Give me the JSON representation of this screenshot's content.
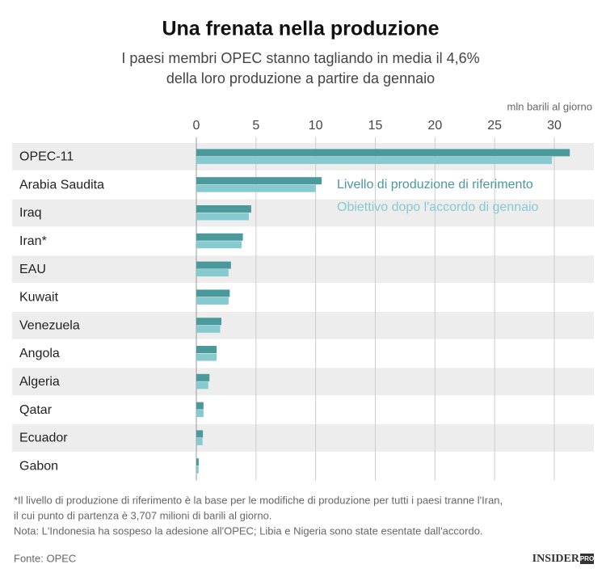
{
  "chart_data": {
    "type": "bar",
    "orientation": "horizontal",
    "title": "Una frenata nella produzione",
    "subtitle": [
      "I paesi membri OPEC stanno tagliando in media il 4,6%",
      "della loro produzione a partire da gennaio"
    ],
    "x_label": "mln barili al giorno",
    "categories": [
      "OPEC-11",
      "Arabia Saudita",
      "Iraq",
      "Iran*",
      "EAU",
      "Kuwait",
      "Venezuela",
      "Angola",
      "Algeria",
      "Qatar",
      "Ecuador",
      "Gabon"
    ],
    "series": [
      {
        "name": "Livello di produzione di riferimento",
        "color": "#4a9a9c",
        "values": [
          31.3,
          10.5,
          4.6,
          3.9,
          2.9,
          2.8,
          2.1,
          1.7,
          1.1,
          0.6,
          0.55,
          0.2
        ]
      },
      {
        "name": "Obiettivo dopo l'accordo di gennaio",
        "color": "#86cacf",
        "values": [
          29.8,
          10.0,
          4.4,
          3.8,
          2.7,
          2.7,
          2.0,
          1.7,
          1.0,
          0.6,
          0.52,
          0.19
        ]
      }
    ],
    "xlim": [
      0,
      31.3
    ],
    "xticks": [
      0,
      5,
      10,
      15,
      20,
      25,
      30
    ],
    "grid": true,
    "notes": [
      "*Il livello di produzione di riferimento è la base per le modifiche di produzione per tutti i paesi tranne l'Iran,",
      "il cui punto di partenza è 3,707 milioni di barili al giorno.",
      "Nota: L'Indonesia ha sospeso la adesione all'OPEC; Libia e Nigeria sono state esentate dall'accordo."
    ],
    "source": "Fonte: OPEC",
    "logo": "INSIDER",
    "logo_badge": "PRO"
  }
}
